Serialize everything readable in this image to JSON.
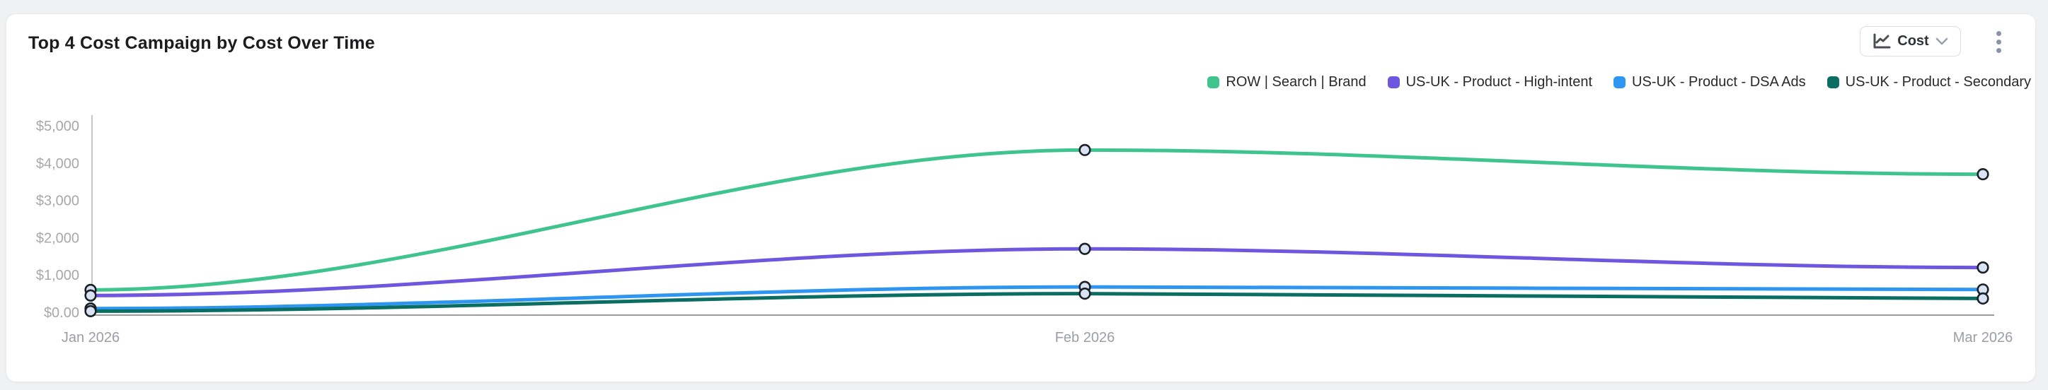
{
  "header": {
    "title": "Top 4 Cost Campaign by Cost Over Time",
    "metric_selector": {
      "label": "Cost",
      "icon": "line-chart-icon",
      "chevron": "chevron-down-icon"
    },
    "menu_icon": "kebab-menu-icon"
  },
  "colors": {
    "card_bg": "#ffffff",
    "page_bg": "#f0f1f3",
    "y_axis_line": "#b6b6b6",
    "x_axis_line": "#9b9b9b",
    "marker_fill": "#d9e3f3",
    "marker_stroke": "#1b2026"
  },
  "chart_data": {
    "type": "line",
    "smooth": true,
    "markers": "circle",
    "grid": false,
    "legend_position": "top-right",
    "x": [
      "Jan 2026",
      "Feb 2026",
      "Mar 2026"
    ],
    "x_day_offsets": [
      0,
      31,
      59
    ],
    "series": [
      {
        "name": "ROW | Search | Brand",
        "color": "#3fc48d",
        "values": [
          600,
          4350,
          3700
        ]
      },
      {
        "name": "US-UK - Product - High-intent",
        "color": "#6e57de",
        "values": [
          450,
          1700,
          1200
        ]
      },
      {
        "name": "US-UK - Product - DSA Ads",
        "color": "#2e96f0",
        "values": [
          100,
          680,
          610
        ]
      },
      {
        "name": "US-UK - Product - Secondary",
        "color": "#0b6e62",
        "values": [
          30,
          500,
          370
        ]
      }
    ],
    "ylabel": "",
    "xlabel": "",
    "y_ticks": [
      "$5,000",
      "$4,000",
      "$3,000",
      "$2,000",
      "$1,000",
      "$0.00"
    ],
    "y_tick_values": [
      5000,
      4000,
      3000,
      2000,
      1000,
      0
    ],
    "ylim": [
      0,
      5000
    ]
  }
}
